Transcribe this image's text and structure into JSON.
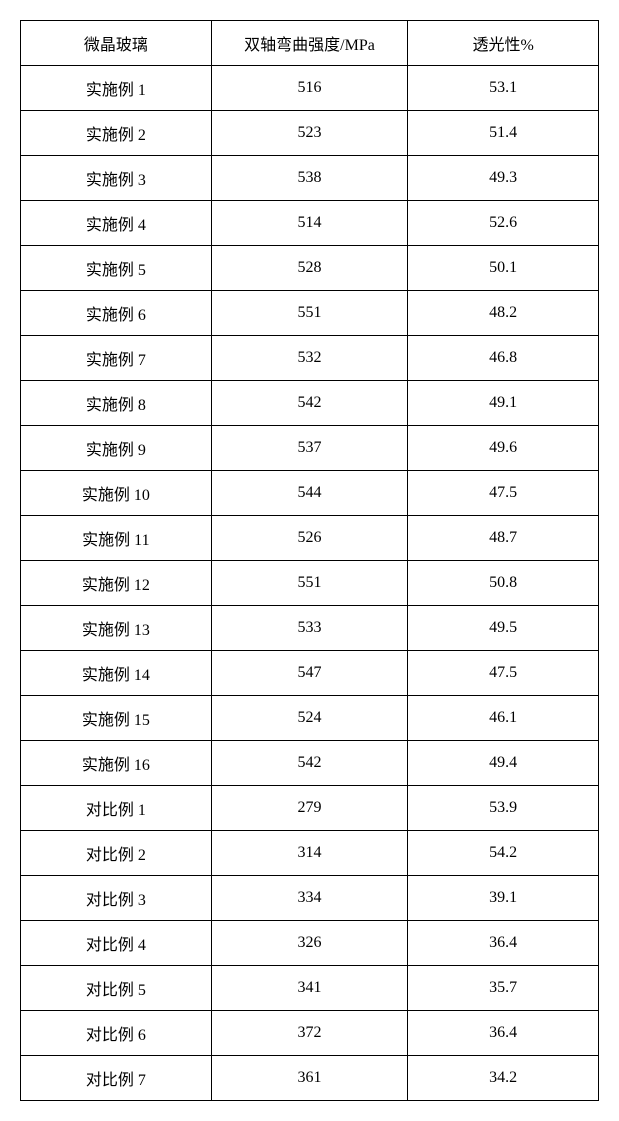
{
  "table": {
    "columns": [
      "微晶玻璃",
      "双轴弯曲强度/MPa",
      "透光性%"
    ],
    "rows": [
      [
        "实施例 1",
        "516",
        "53.1"
      ],
      [
        "实施例 2",
        "523",
        "51.4"
      ],
      [
        "实施例 3",
        "538",
        "49.3"
      ],
      [
        "实施例 4",
        "514",
        "52.6"
      ],
      [
        "实施例 5",
        "528",
        "50.1"
      ],
      [
        "实施例 6",
        "551",
        "48.2"
      ],
      [
        "实施例 7",
        "532",
        "46.8"
      ],
      [
        "实施例 8",
        "542",
        "49.1"
      ],
      [
        "实施例 9",
        "537",
        "49.6"
      ],
      [
        "实施例 10",
        "544",
        "47.5"
      ],
      [
        "实施例 11",
        "526",
        "48.7"
      ],
      [
        "实施例 12",
        "551",
        "50.8"
      ],
      [
        "实施例 13",
        "533",
        "49.5"
      ],
      [
        "实施例 14",
        "547",
        "47.5"
      ],
      [
        "实施例 15",
        "524",
        "46.1"
      ],
      [
        "实施例 16",
        "542",
        "49.4"
      ],
      [
        "对比例 1",
        "279",
        "53.9"
      ],
      [
        "对比例 2",
        "314",
        "54.2"
      ],
      [
        "对比例 3",
        "334",
        "39.1"
      ],
      [
        "对比例 4",
        "326",
        "36.4"
      ],
      [
        "对比例 5",
        "341",
        "35.7"
      ],
      [
        "对比例 6",
        "372",
        "36.4"
      ],
      [
        "对比例 7",
        "361",
        "34.2"
      ]
    ],
    "border_color": "#000000",
    "background_color": "#ffffff",
    "font_size": 16,
    "cell_padding": 10,
    "column_widths": [
      "33%",
      "34%",
      "33%"
    ]
  }
}
